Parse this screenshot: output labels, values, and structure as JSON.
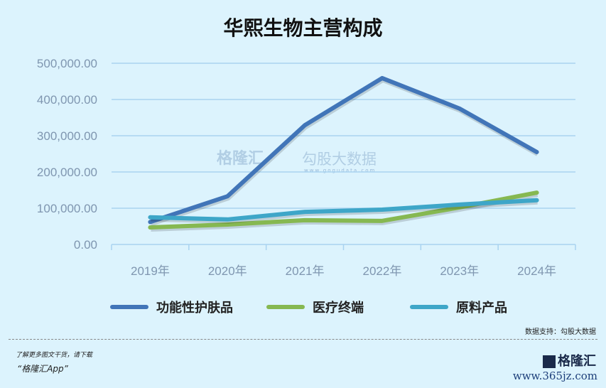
{
  "chart_data": {
    "type": "line",
    "title": "华熙生物主营构成",
    "categories": [
      "2019年",
      "2020年",
      "2021年",
      "2022年",
      "2023年",
      "2024年"
    ],
    "ylim": [
      0,
      500000
    ],
    "yticks": [
      "0.00",
      "100,000.00",
      "200,000.00",
      "300,000.00",
      "400,000.00",
      "500,000.00"
    ],
    "grid": true,
    "legend_position": "bottom",
    "series": [
      {
        "name": "功能性护肤品",
        "color": "#4175b8",
        "values": [
          62000,
          133000,
          329000,
          459000,
          375000,
          255000
        ]
      },
      {
        "name": "医疗终端",
        "color": "#86b851",
        "values": [
          47000,
          55000,
          67000,
          65000,
          102000,
          143000
        ]
      },
      {
        "name": "原料产品",
        "color": "#3ea6c8",
        "values": [
          75000,
          69000,
          90000,
          96000,
          110000,
          122000
        ]
      }
    ]
  },
  "watermark": {
    "brand": "格隆汇",
    "data": "勾股大数据",
    "url": "www.gogudata.com"
  },
  "footer": {
    "source": "数据支持：勾股大数据",
    "promo": "了解更多图文干货，请下载",
    "app": "“格隆汇App”",
    "logo": "格隆汇",
    "site": "www.365jz.com"
  }
}
